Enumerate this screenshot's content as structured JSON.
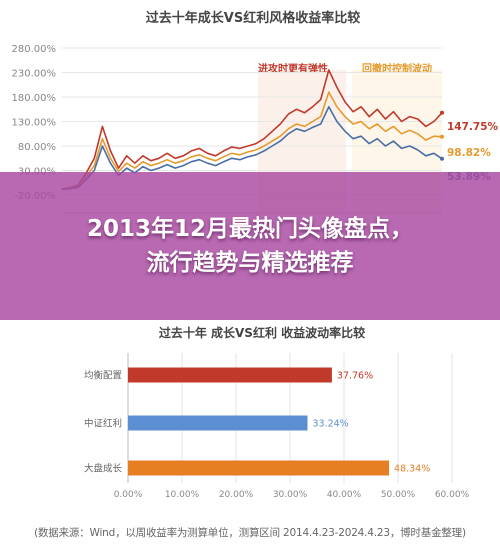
{
  "banner": {
    "line1": "2013年12月最热门头像盘点，",
    "line2": "流行趋势与精选推荐"
  },
  "footer": {
    "text": "(数据来源：Wind，以周收益率为测算单位，测算区间 2014.4.23-2024.4.23，博时基金整理)"
  },
  "chart_data": [
    {
      "type": "line",
      "title": "过去十年成长VS红利风格收益率比较",
      "ytick_labels": [
        "280.00%",
        "230.00%",
        "180.00%",
        "130.00%",
        "80.00%",
        "30.00%",
        "-20.00%"
      ],
      "ylim": [
        -20,
        280
      ],
      "annotations": [
        {
          "text": "进攻时更有弹性",
          "color": "#c0392b"
        },
        {
          "text": "回撤时控制波动",
          "color": "#e69a2e"
        }
      ],
      "series": [
        {
          "color": "#c0392b",
          "end_label": "147.75%",
          "values": [
            -8,
            -5,
            0,
            25,
            55,
            120,
            70,
            35,
            60,
            45,
            60,
            50,
            55,
            65,
            55,
            60,
            70,
            75,
            65,
            60,
            70,
            78,
            75,
            80,
            85,
            95,
            110,
            125,
            145,
            155,
            148,
            160,
            175,
            235,
            200,
            170,
            150,
            160,
            140,
            155,
            135,
            150,
            130,
            140,
            135,
            120,
            130,
            147.75
          ]
        },
        {
          "color": "#e69a2e",
          "end_label": "98.82%",
          "values": [
            -8,
            -6,
            -2,
            18,
            40,
            95,
            55,
            28,
            45,
            35,
            48,
            40,
            45,
            52,
            45,
            50,
            58,
            62,
            55,
            50,
            58,
            65,
            62,
            68,
            72,
            80,
            90,
            100,
            115,
            125,
            120,
            130,
            140,
            190,
            160,
            140,
            125,
            130,
            115,
            125,
            110,
            120,
            105,
            112,
            105,
            92,
            100,
            98.82
          ]
        },
        {
          "color": "#4a6fa5",
          "end_label": "53.89%",
          "values": [
            -8,
            -7,
            -4,
            12,
            30,
            80,
            45,
            20,
            35,
            25,
            38,
            30,
            35,
            42,
            35,
            40,
            48,
            52,
            45,
            40,
            48,
            55,
            52,
            58,
            62,
            70,
            80,
            90,
            105,
            115,
            110,
            118,
            125,
            160,
            130,
            110,
            95,
            100,
            85,
            95,
            80,
            90,
            75,
            80,
            72,
            60,
            65,
            53.89
          ]
        }
      ],
      "grid": true
    },
    {
      "type": "bar",
      "orientation": "horizontal",
      "title": "过去十年 成长VS红利 收益波动率比较",
      "categories": [
        "均衡配置",
        "中证红利",
        "大盘成长"
      ],
      "values": [
        37.76,
        33.24,
        48.34
      ],
      "value_labels": [
        "37.76%",
        "33.24%",
        "48.34%"
      ],
      "colors": [
        "#c0392b",
        "#5b8fd1",
        "#e67e22"
      ],
      "xtick_labels": [
        "0.00%",
        "10.00%",
        "20.00%",
        "30.00%",
        "40.00%",
        "50.00%",
        "60.00%"
      ],
      "xlim": [
        0,
        60
      ]
    }
  ]
}
